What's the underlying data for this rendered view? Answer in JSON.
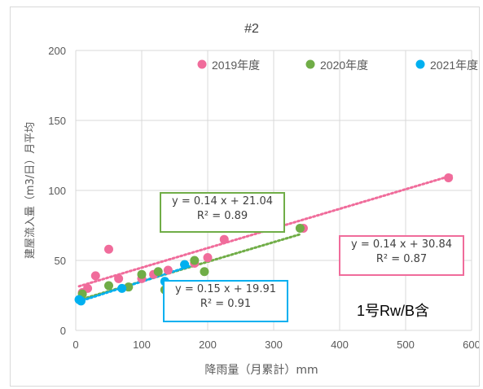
{
  "chart_data": {
    "type": "scatter",
    "title": "#2",
    "xlabel": "降雨量（月累計）mm",
    "ylabel": "建屋流入量（m3/日）月平均",
    "xlim": [
      0,
      600
    ],
    "ylim": [
      0,
      200
    ],
    "xticks": [
      "0",
      "100",
      "200",
      "300",
      "400",
      "500",
      "600"
    ],
    "yticks": [
      "0",
      "50",
      "100",
      "150",
      "200"
    ],
    "grid": true,
    "legend_position": "top",
    "series": [
      {
        "name": "2019年度",
        "color": "#f06c9b",
        "points": [
          [
            10,
            27
          ],
          [
            18,
            30
          ],
          [
            30,
            39
          ],
          [
            50,
            58
          ],
          [
            65,
            37
          ],
          [
            100,
            37
          ],
          [
            118,
            40
          ],
          [
            140,
            43
          ],
          [
            180,
            48
          ],
          [
            200,
            52
          ],
          [
            225,
            65
          ],
          [
            345,
            73
          ],
          [
            565,
            109
          ]
        ],
        "trend": {
          "equation": "y = 0.14 x + 30.84",
          "r2": "R² = 0.87",
          "x_range": [
            5,
            570
          ]
        }
      },
      {
        "name": "2020年度",
        "color": "#70ad47",
        "points": [
          [
            10,
            26
          ],
          [
            50,
            32
          ],
          [
            80,
            31
          ],
          [
            100,
            40
          ],
          [
            125,
            42
          ],
          [
            135,
            29
          ],
          [
            165,
            47
          ],
          [
            180,
            50
          ],
          [
            195,
            42
          ],
          [
            340,
            73
          ]
        ],
        "trend": {
          "equation": "y = 0.14 x + 21.04",
          "r2": "R² = 0.89",
          "x_range": [
            5,
            340
          ]
        }
      },
      {
        "name": "2021年度",
        "color": "#00b0f0",
        "points": [
          [
            5,
            22
          ],
          [
            8,
            21
          ],
          [
            70,
            30
          ],
          [
            135,
            35
          ],
          [
            165,
            47
          ]
        ],
        "trend": {
          "equation": "y = 0.15 x + 19.91",
          "r2": "R² = 0.91",
          "x_range": [
            5,
            175
          ]
        }
      }
    ]
  },
  "note": "1号Rw/B含"
}
